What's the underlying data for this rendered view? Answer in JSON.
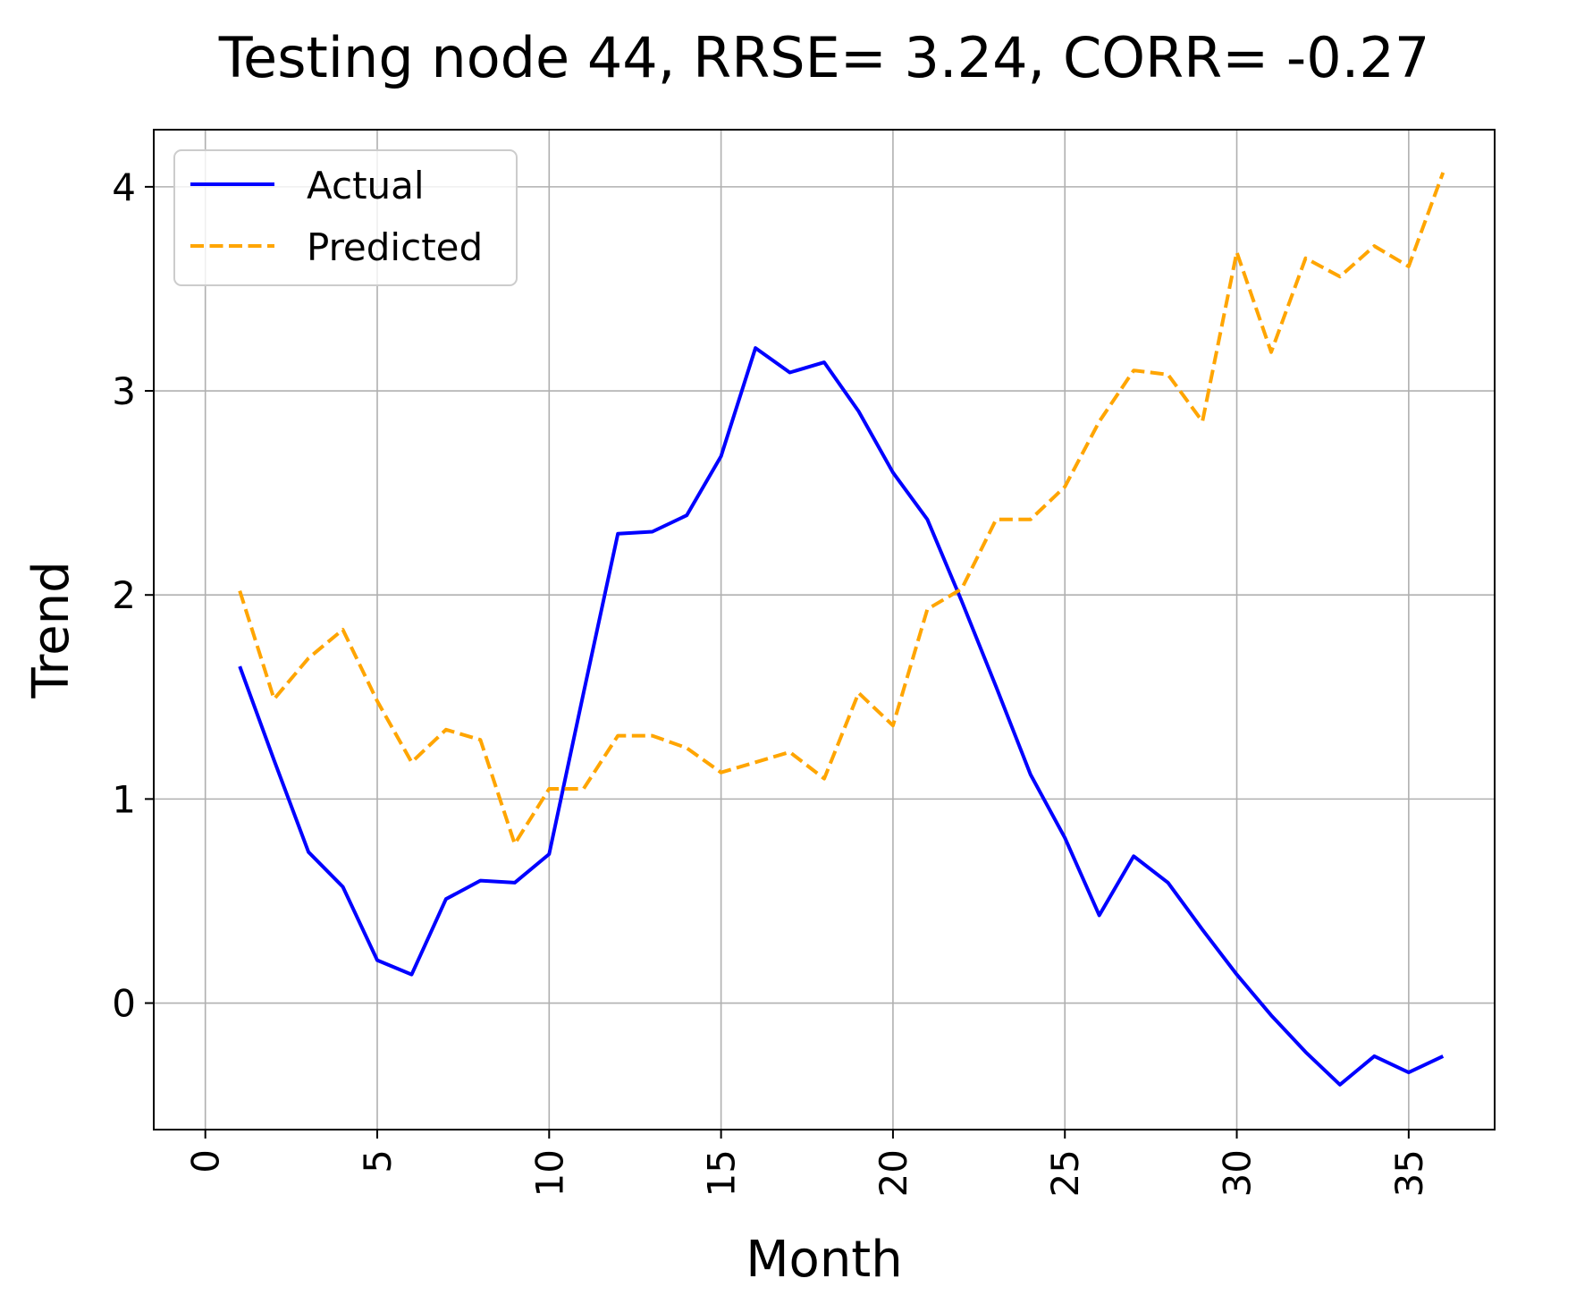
{
  "chart_data": {
    "type": "line",
    "title": "Testing node 44, RRSE= 3.24, CORR= -0.27",
    "xlabel": "Month",
    "ylabel": "Trend",
    "xlim": [
      -1.5,
      37.5
    ],
    "ylim": [
      -0.62,
      4.28
    ],
    "xticks": [
      0,
      5,
      10,
      15,
      20,
      25,
      30,
      35
    ],
    "xtick_labels": [
      "0",
      "5",
      "10",
      "15",
      "20",
      "25",
      "30",
      "35"
    ],
    "yticks": [
      0,
      1,
      2,
      3,
      4
    ],
    "ytick_labels": [
      "0",
      "1",
      "2",
      "3",
      "4"
    ],
    "grid": true,
    "legend_position": "top-left",
    "x": [
      1,
      2,
      3,
      4,
      5,
      6,
      7,
      8,
      9,
      10,
      11,
      12,
      13,
      14,
      15,
      16,
      17,
      18,
      19,
      20,
      21,
      22,
      23,
      24,
      25,
      26,
      27,
      28,
      29,
      30,
      31,
      32,
      33,
      34,
      35,
      36
    ],
    "series": [
      {
        "name": "Actual",
        "color": "#0000ff",
        "style": "solid",
        "values": [
          1.65,
          1.19,
          0.74,
          0.57,
          0.21,
          0.14,
          0.51,
          0.6,
          0.59,
          0.73,
          1.52,
          2.3,
          2.31,
          2.39,
          2.68,
          3.21,
          3.09,
          3.14,
          2.9,
          2.6,
          2.37,
          1.97,
          1.55,
          1.12,
          0.81,
          0.43,
          0.72,
          0.59,
          0.36,
          0.14,
          -0.06,
          -0.24,
          -0.4,
          -0.26,
          -0.34,
          -0.26
        ]
      },
      {
        "name": "Predicted",
        "color": "#ffa500",
        "style": "dashed",
        "values": [
          2.02,
          1.49,
          1.69,
          1.83,
          1.48,
          1.18,
          1.34,
          1.29,
          0.78,
          1.05,
          1.05,
          1.31,
          1.31,
          1.25,
          1.13,
          1.18,
          1.23,
          1.1,
          1.52,
          1.36,
          1.93,
          2.03,
          2.37,
          2.37,
          2.53,
          2.85,
          3.1,
          3.08,
          2.85,
          3.68,
          3.19,
          3.65,
          3.56,
          3.71,
          3.61,
          4.07
        ]
      }
    ]
  }
}
